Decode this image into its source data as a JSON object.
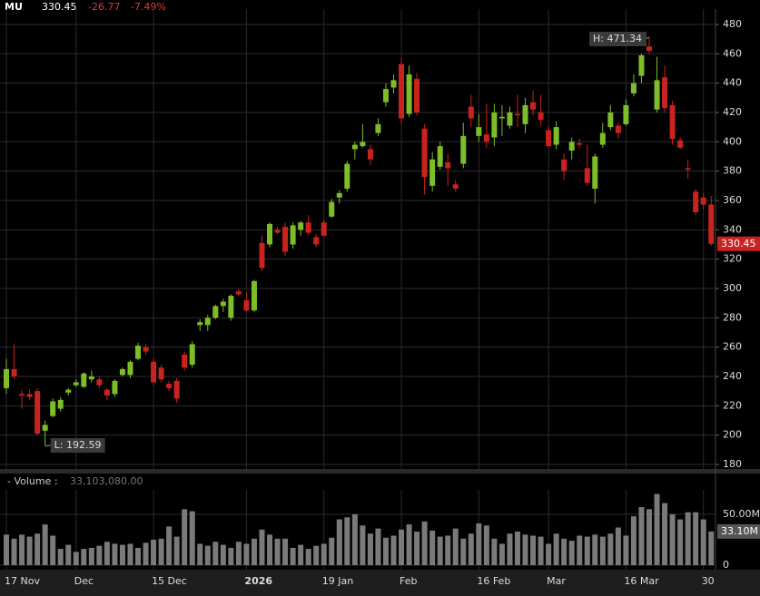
{
  "header": {
    "symbol": "MU",
    "change": "-26.77",
    "change_pct": "-7.49%"
  },
  "chart_data": {
    "type": "candlestick",
    "categories": [
      "17 Nov",
      null,
      null,
      null,
      null,
      null,
      null,
      null,
      null,
      "Dec",
      null,
      null,
      null,
      null,
      null,
      null,
      null,
      null,
      null,
      "15 Dec",
      null,
      null,
      null,
      null,
      null,
      null,
      null,
      null,
      null,
      null,
      null,
      "2026",
      null,
      null,
      null,
      null,
      null,
      null,
      null,
      null,
      null,
      "19 Jan",
      null,
      null,
      null,
      null,
      null,
      null,
      null,
      null,
      null,
      "Feb",
      null,
      null,
      null,
      null,
      null,
      null,
      null,
      null,
      null,
      "16 Feb",
      null,
      null,
      null,
      null,
      null,
      null,
      null,
      null,
      "Mar",
      null,
      null,
      null,
      null,
      null,
      null,
      null,
      null,
      null,
      "16 Mar",
      null,
      null,
      null,
      null,
      null,
      null,
      null,
      null,
      null,
      "30",
      null
    ],
    "open": [
      232,
      245,
      228,
      228,
      230,
      203,
      213,
      218,
      229,
      234,
      233,
      238,
      238,
      231,
      228,
      241,
      241,
      252,
      260,
      250,
      246,
      235,
      237,
      255,
      248,
      275,
      275,
      280,
      288,
      280,
      298,
      292,
      285,
      331,
      330,
      340,
      342,
      330,
      340,
      345,
      335,
      345,
      349,
      362,
      368,
      395,
      397,
      395,
      406,
      427,
      437,
      453,
      419,
      443,
      409,
      370,
      383,
      386,
      371,
      385,
      424,
      404,
      405,
      403,
      416,
      411,
      419,
      412,
      427,
      420,
      408,
      398,
      388,
      394,
      399,
      382,
      368,
      398,
      410,
      411,
      412,
      433,
      445,
      465,
      422,
      444,
      425,
      401,
      382,
      366,
      362,
      357.22
    ],
    "high": [
      252,
      262,
      231,
      231,
      232,
      210,
      225,
      226,
      232,
      238,
      243,
      244,
      240,
      232,
      238,
      246,
      251,
      263,
      262,
      252,
      248,
      237,
      239,
      257,
      264,
      279,
      282,
      289,
      293,
      296,
      300,
      297,
      306,
      336,
      345,
      342,
      345,
      345,
      346,
      350,
      337,
      347,
      361,
      367,
      387,
      400,
      412,
      398,
      416,
      440,
      446,
      457,
      452,
      447,
      412,
      393,
      400,
      392,
      374,
      413,
      432,
      419,
      426,
      426,
      425,
      424,
      432,
      430,
      435,
      432,
      411,
      414,
      392,
      403,
      402,
      398,
      392,
      413,
      425,
      413,
      429,
      446,
      460,
      471.34,
      458,
      452,
      428,
      403,
      388,
      368,
      365,
      363
    ],
    "low": [
      228,
      238,
      218,
      224,
      200,
      192.59,
      212,
      216,
      227,
      233,
      232,
      236,
      232,
      224,
      226,
      240,
      239,
      251,
      255,
      234,
      236,
      230,
      222,
      244,
      246,
      271,
      271,
      279,
      284,
      278,
      295,
      284,
      284,
      312,
      328,
      337,
      322,
      327,
      336,
      336,
      328,
      335,
      348,
      358,
      366,
      388,
      396,
      384,
      404,
      424,
      433,
      412,
      417,
      418,
      364,
      366,
      381,
      370,
      366,
      382,
      410,
      400,
      396,
      397,
      404,
      409,
      410,
      406,
      418,
      411,
      396,
      395,
      374,
      388,
      396,
      370,
      358,
      396,
      408,
      402,
      411,
      431,
      440,
      460,
      420,
      420,
      398,
      395,
      375,
      350,
      354,
      329
    ],
    "close": [
      245,
      240,
      227,
      226,
      201,
      207,
      223,
      224,
      231,
      236,
      242,
      240,
      234,
      227,
      237,
      245,
      250,
      261,
      257,
      236,
      238,
      232,
      225,
      246,
      262,
      277,
      280,
      288,
      291,
      295,
      296,
      285,
      305,
      314,
      344,
      338,
      325,
      343,
      345,
      338,
      330,
      336,
      359,
      365,
      385,
      398,
      400,
      388,
      412,
      436,
      442,
      416,
      446,
      420,
      376,
      388,
      397,
      382,
      368,
      404,
      416,
      410,
      400,
      420,
      417,
      420,
      418,
      425,
      422,
      415,
      397,
      410,
      380,
      400,
      398,
      372,
      390,
      406,
      420,
      406,
      425,
      440,
      459,
      462,
      442,
      423,
      402,
      396,
      381,
      352,
      357.22,
      330.45
    ],
    "up_color": "#7dbd2a",
    "down_color": "#c9231f",
    "ylim": [
      176.9,
      490.5
    ],
    "yticks": [
      180,
      200,
      220,
      240,
      260,
      280,
      300,
      320,
      340,
      360,
      380,
      400,
      420,
      440,
      460,
      480
    ],
    "grid": true,
    "high_label": "H: 471.34",
    "low_label": "L: 192.59",
    "volume": {
      "name": "- Volume :",
      "color": "#7a7a7a",
      "value_label": "33,103,080.00",
      "tag_label": "33.10M",
      "values": [
        30000000,
        26000000,
        30000000,
        28000000,
        31000000,
        40000000,
        29000000,
        16000000,
        20000000,
        13000000,
        16000000,
        17000000,
        19000000,
        23000000,
        21000000,
        20000000,
        21000000,
        17000000,
        22000000,
        25000000,
        26000000,
        38000000,
        28000000,
        55000000,
        53000000,
        21000000,
        19000000,
        23000000,
        20000000,
        17000000,
        23000000,
        21000000,
        26000000,
        35000000,
        30000000,
        26000000,
        26000000,
        17000000,
        20000000,
        16000000,
        19000000,
        21000000,
        27000000,
        45000000,
        47000000,
        50000000,
        39000000,
        31000000,
        36000000,
        27000000,
        29000000,
        35000000,
        40000000,
        33000000,
        43000000,
        34000000,
        28000000,
        29000000,
        36000000,
        26000000,
        31000000,
        41000000,
        39000000,
        26000000,
        21000000,
        31000000,
        33000000,
        30000000,
        29000000,
        28000000,
        21000000,
        31000000,
        26000000,
        24000000,
        29000000,
        28000000,
        30000000,
        28000000,
        31000000,
        37000000,
        29000000,
        48000000,
        57000000,
        55000000,
        70000000,
        61000000,
        50000000,
        45000000,
        52000000,
        52000000,
        45000000,
        33103080
      ],
      "ylim": [
        0,
        74000000
      ],
      "yticks": [
        0,
        {
          "value": 50000000,
          "label": "50.00M"
        }
      ]
    }
  }
}
